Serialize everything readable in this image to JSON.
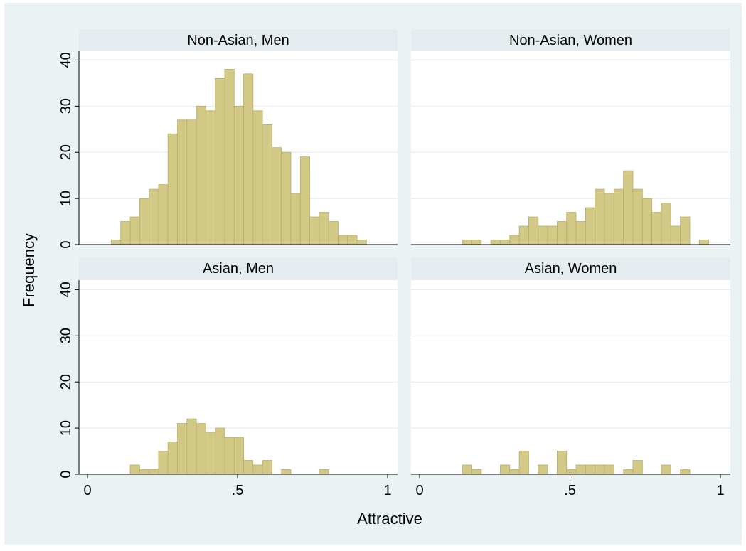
{
  "chart_data": {
    "type": "bar",
    "kind": "histogram",
    "xlabel": "Attractive",
    "ylabel": "Frequency",
    "xlim": [
      0,
      1
    ],
    "ylim": [
      0,
      40
    ],
    "xticks": [
      "0",
      ".5",
      "1"
    ],
    "yticks": [
      "0",
      "10",
      "20",
      "30",
      "40"
    ],
    "bin_width": 0.0315,
    "grid": true,
    "bar_color": "#d3c987",
    "bar_edge_color": "#b8ad6a",
    "panel_header_color": "#e5ecef",
    "background_color": "#eaf2f3",
    "panels": [
      {
        "title": "Non-Asian, Men",
        "bins": [
          {
            "x": 0.095,
            "y": 1
          },
          {
            "x": 0.1265,
            "y": 5
          },
          {
            "x": 0.158,
            "y": 6
          },
          {
            "x": 0.1895,
            "y": 10
          },
          {
            "x": 0.221,
            "y": 12
          },
          {
            "x": 0.2525,
            "y": 13
          },
          {
            "x": 0.284,
            "y": 24
          },
          {
            "x": 0.3155,
            "y": 27
          },
          {
            "x": 0.347,
            "y": 27
          },
          {
            "x": 0.3785,
            "y": 30
          },
          {
            "x": 0.41,
            "y": 29
          },
          {
            "x": 0.4415,
            "y": 36
          },
          {
            "x": 0.473,
            "y": 38
          },
          {
            "x": 0.5045,
            "y": 30
          },
          {
            "x": 0.536,
            "y": 37
          },
          {
            "x": 0.5675,
            "y": 29
          },
          {
            "x": 0.599,
            "y": 26
          },
          {
            "x": 0.6305,
            "y": 21
          },
          {
            "x": 0.662,
            "y": 20
          },
          {
            "x": 0.6935,
            "y": 11
          },
          {
            "x": 0.725,
            "y": 19
          },
          {
            "x": 0.7565,
            "y": 6
          },
          {
            "x": 0.788,
            "y": 7
          },
          {
            "x": 0.8195,
            "y": 5
          },
          {
            "x": 0.851,
            "y": 2
          },
          {
            "x": 0.8825,
            "y": 2
          },
          {
            "x": 0.914,
            "y": 1
          }
        ]
      },
      {
        "title": "Non-Asian, Women",
        "bins": [
          {
            "x": 0.158,
            "y": 1
          },
          {
            "x": 0.1895,
            "y": 1
          },
          {
            "x": 0.2525,
            "y": 1
          },
          {
            "x": 0.284,
            "y": 1
          },
          {
            "x": 0.3155,
            "y": 2
          },
          {
            "x": 0.347,
            "y": 4
          },
          {
            "x": 0.3785,
            "y": 6
          },
          {
            "x": 0.41,
            "y": 4
          },
          {
            "x": 0.4415,
            "y": 4
          },
          {
            "x": 0.473,
            "y": 5
          },
          {
            "x": 0.5045,
            "y": 7
          },
          {
            "x": 0.536,
            "y": 5
          },
          {
            "x": 0.5675,
            "y": 8
          },
          {
            "x": 0.599,
            "y": 12
          },
          {
            "x": 0.6305,
            "y": 11
          },
          {
            "x": 0.662,
            "y": 12
          },
          {
            "x": 0.6935,
            "y": 16
          },
          {
            "x": 0.725,
            "y": 12
          },
          {
            "x": 0.7565,
            "y": 10
          },
          {
            "x": 0.788,
            "y": 7
          },
          {
            "x": 0.8195,
            "y": 9
          },
          {
            "x": 0.851,
            "y": 4
          },
          {
            "x": 0.8825,
            "y": 6
          },
          {
            "x": 0.9455,
            "y": 1
          }
        ]
      },
      {
        "title": "Asian, Men",
        "bins": [
          {
            "x": 0.158,
            "y": 2
          },
          {
            "x": 0.1895,
            "y": 1
          },
          {
            "x": 0.221,
            "y": 1
          },
          {
            "x": 0.2525,
            "y": 5
          },
          {
            "x": 0.284,
            "y": 7
          },
          {
            "x": 0.3155,
            "y": 11
          },
          {
            "x": 0.347,
            "y": 12
          },
          {
            "x": 0.3785,
            "y": 11
          },
          {
            "x": 0.41,
            "y": 9
          },
          {
            "x": 0.4415,
            "y": 10
          },
          {
            "x": 0.473,
            "y": 8
          },
          {
            "x": 0.5045,
            "y": 8
          },
          {
            "x": 0.536,
            "y": 3
          },
          {
            "x": 0.5675,
            "y": 2
          },
          {
            "x": 0.599,
            "y": 3
          },
          {
            "x": 0.662,
            "y": 1
          },
          {
            "x": 0.788,
            "y": 1
          }
        ]
      },
      {
        "title": "Asian, Women",
        "bins": [
          {
            "x": 0.158,
            "y": 2
          },
          {
            "x": 0.1895,
            "y": 1
          },
          {
            "x": 0.284,
            "y": 2
          },
          {
            "x": 0.3155,
            "y": 1
          },
          {
            "x": 0.347,
            "y": 5
          },
          {
            "x": 0.41,
            "y": 2
          },
          {
            "x": 0.473,
            "y": 5
          },
          {
            "x": 0.5045,
            "y": 1
          },
          {
            "x": 0.536,
            "y": 2
          },
          {
            "x": 0.5675,
            "y": 2
          },
          {
            "x": 0.599,
            "y": 2
          },
          {
            "x": 0.6305,
            "y": 2
          },
          {
            "x": 0.6935,
            "y": 1
          },
          {
            "x": 0.725,
            "y": 3
          },
          {
            "x": 0.8195,
            "y": 2
          },
          {
            "x": 0.8825,
            "y": 1
          }
        ]
      }
    ]
  }
}
